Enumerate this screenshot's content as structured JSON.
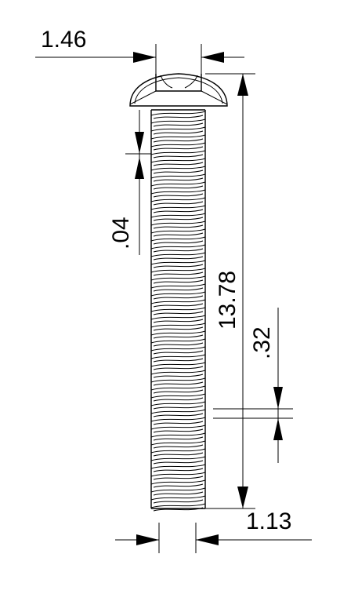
{
  "drawing": {
    "subject": "slotted round head machine screw",
    "dimensions": {
      "slot_width": "1.46",
      "thread_pitch": ".04",
      "overall_length": "13.78",
      "thread_depth": ".32",
      "shank_diameter": "1.13"
    }
  }
}
